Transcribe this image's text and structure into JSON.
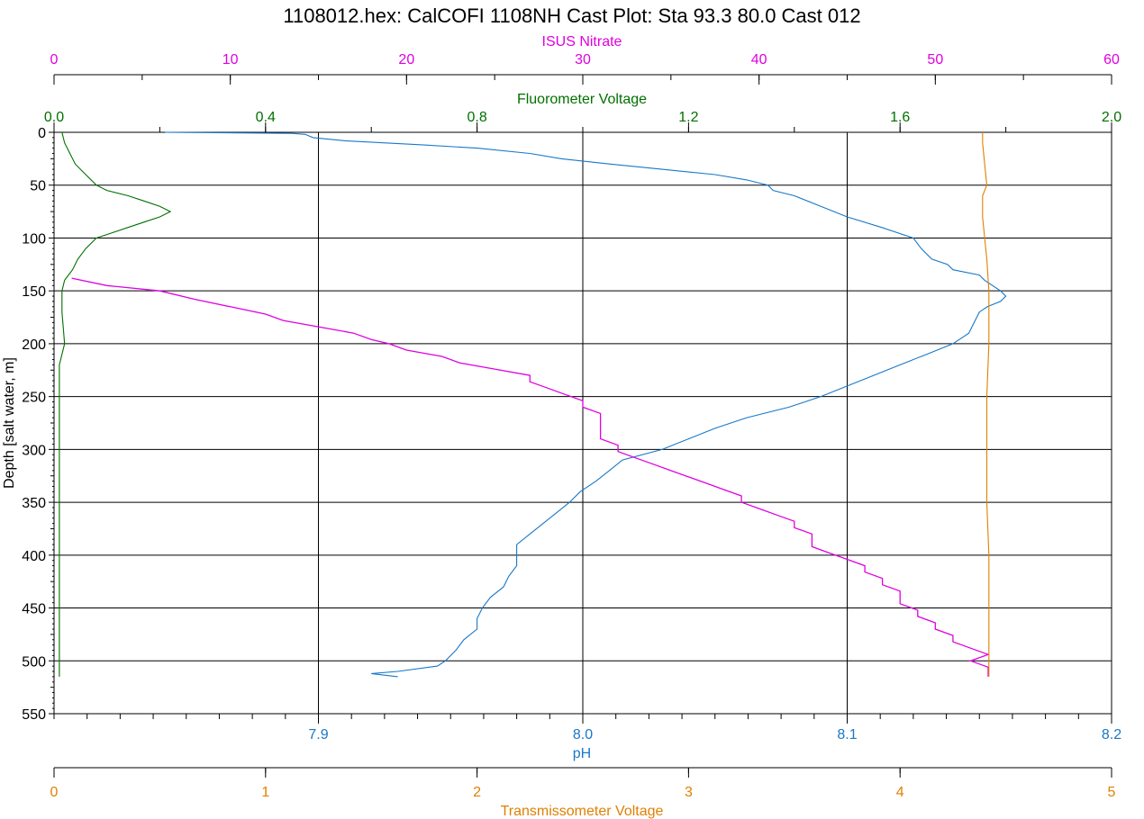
{
  "chart_data": {
    "type": "line",
    "title": "1108012.hex: CalCOFI 1108NH Cast Plot: Sta 93.3 80.0 Cast 012",
    "ylabel": "Depth [salt water, m]",
    "ylim": [
      0,
      550
    ],
    "y_ticks": [
      "0",
      "50",
      "100",
      "150",
      "200",
      "250",
      "300",
      "350",
      "400",
      "450",
      "500",
      "550"
    ],
    "y_reversed": true,
    "grid": true,
    "axes": {
      "nitrate": {
        "label": "ISUS Nitrate",
        "range": [
          0,
          60
        ],
        "ticks": [
          "0",
          "10",
          "20",
          "30",
          "40",
          "50",
          "60"
        ],
        "color": "#e000e0",
        "position": "top"
      },
      "fluor": {
        "label": "Fluorometer Voltage",
        "range": [
          0.0,
          2.0
        ],
        "ticks": [
          "0.0",
          "0.4",
          "0.8",
          "1.2",
          "1.6",
          "2.0"
        ],
        "color": "#007000",
        "position": "top"
      },
      "ph": {
        "label": "pH",
        "range": [
          7.8,
          8.2
        ],
        "ticks": [
          "7.9",
          "8.0",
          "8.1",
          "8.2"
        ],
        "color": "#1878c8",
        "position": "bottom"
      },
      "trans": {
        "label": "Transmissometer Voltage",
        "range": [
          0,
          5
        ],
        "ticks": [
          "0",
          "1",
          "2",
          "3",
          "4",
          "5"
        ],
        "color": "#e08000",
        "position": "bottom"
      }
    },
    "series": [
      {
        "name": "pH",
        "axis": "ph",
        "color": "#1878c8",
        "points": [
          [
            7.842,
            0
          ],
          [
            7.89,
            1
          ],
          [
            7.895,
            2
          ],
          [
            7.898,
            5
          ],
          [
            7.91,
            8
          ],
          [
            7.94,
            12
          ],
          [
            7.96,
            15
          ],
          [
            7.98,
            20
          ],
          [
            7.992,
            25
          ],
          [
            8.01,
            30
          ],
          [
            8.03,
            35
          ],
          [
            8.05,
            40
          ],
          [
            8.062,
            45
          ],
          [
            8.07,
            50
          ],
          [
            8.072,
            55
          ],
          [
            8.08,
            60
          ],
          [
            8.09,
            70
          ],
          [
            8.1,
            80
          ],
          [
            8.113,
            90
          ],
          [
            8.125,
            100
          ],
          [
            8.128,
            110
          ],
          [
            8.13,
            115
          ],
          [
            8.132,
            120
          ],
          [
            8.138,
            125
          ],
          [
            8.14,
            130
          ],
          [
            8.15,
            135
          ],
          [
            8.152,
            140
          ],
          [
            8.158,
            150
          ],
          [
            8.16,
            155
          ],
          [
            8.158,
            160
          ],
          [
            8.153,
            165
          ],
          [
            8.15,
            170
          ],
          [
            8.148,
            180
          ],
          [
            8.146,
            190
          ],
          [
            8.14,
            200
          ],
          [
            8.13,
            210
          ],
          [
            8.12,
            220
          ],
          [
            8.11,
            230
          ],
          [
            8.1,
            240
          ],
          [
            8.09,
            250
          ],
          [
            8.078,
            260
          ],
          [
            8.062,
            270
          ],
          [
            8.05,
            280
          ],
          [
            8.04,
            290
          ],
          [
            8.03,
            300
          ],
          [
            8.015,
            310
          ],
          [
            8.01,
            320
          ],
          [
            8.005,
            330
          ],
          [
            7.999,
            340
          ],
          [
            7.995,
            350
          ],
          [
            7.99,
            360
          ],
          [
            7.985,
            370
          ],
          [
            7.98,
            380
          ],
          [
            7.975,
            390
          ],
          [
            7.975,
            400
          ],
          [
            7.975,
            410
          ],
          [
            7.972,
            420
          ],
          [
            7.97,
            430
          ],
          [
            7.965,
            440
          ],
          [
            7.962,
            450
          ],
          [
            7.96,
            460
          ],
          [
            7.96,
            470
          ],
          [
            7.955,
            480
          ],
          [
            7.952,
            490
          ],
          [
            7.95,
            495
          ],
          [
            7.948,
            500
          ],
          [
            7.945,
            505
          ],
          [
            7.93,
            510
          ],
          [
            7.92,
            512
          ],
          [
            7.93,
            515
          ]
        ]
      },
      {
        "name": "ISUS Nitrate",
        "axis": "nitrate",
        "color": "#e000e0",
        "points": [
          [
            1,
            138
          ],
          [
            3,
            145
          ],
          [
            6,
            150
          ],
          [
            8,
            158
          ],
          [
            10,
            165
          ],
          [
            12,
            172
          ],
          [
            13,
            178
          ],
          [
            15,
            184
          ],
          [
            17,
            190
          ],
          [
            18,
            196
          ],
          [
            19,
            200
          ],
          [
            20,
            206
          ],
          [
            22,
            212
          ],
          [
            23,
            218
          ],
          [
            25,
            224
          ],
          [
            27,
            230
          ],
          [
            27,
            236
          ],
          [
            28,
            242
          ],
          [
            29,
            248
          ],
          [
            30,
            254
          ],
          [
            30,
            260
          ],
          [
            31,
            266
          ],
          [
            31,
            272
          ],
          [
            31,
            278
          ],
          [
            31,
            284
          ],
          [
            31,
            290
          ],
          [
            32,
            296
          ],
          [
            32,
            302
          ],
          [
            33,
            308
          ],
          [
            34,
            314
          ],
          [
            35,
            320
          ],
          [
            36,
            326
          ],
          [
            37,
            332
          ],
          [
            38,
            338
          ],
          [
            39,
            344
          ],
          [
            39,
            350
          ],
          [
            40,
            356
          ],
          [
            41,
            362
          ],
          [
            42,
            368
          ],
          [
            42,
            374
          ],
          [
            43,
            380
          ],
          [
            43,
            386
          ],
          [
            43,
            392
          ],
          [
            44,
            398
          ],
          [
            45,
            404
          ],
          [
            46,
            410
          ],
          [
            46,
            416
          ],
          [
            47,
            422
          ],
          [
            47,
            428
          ],
          [
            48,
            434
          ],
          [
            48,
            440
          ],
          [
            48,
            446
          ],
          [
            49,
            452
          ],
          [
            49,
            458
          ],
          [
            50,
            464
          ],
          [
            50,
            470
          ],
          [
            51,
            476
          ],
          [
            51,
            482
          ],
          [
            52,
            488
          ],
          [
            53,
            494
          ],
          [
            52,
            500
          ],
          [
            53,
            506
          ],
          [
            53,
            512
          ],
          [
            53,
            515
          ]
        ]
      },
      {
        "name": "Fluorometer Voltage",
        "axis": "fluor",
        "color": "#007000",
        "points": [
          [
            0.015,
            0
          ],
          [
            0.02,
            10
          ],
          [
            0.03,
            20
          ],
          [
            0.04,
            30
          ],
          [
            0.06,
            40
          ],
          [
            0.08,
            50
          ],
          [
            0.1,
            55
          ],
          [
            0.14,
            60
          ],
          [
            0.17,
            65
          ],
          [
            0.2,
            70
          ],
          [
            0.22,
            75
          ],
          [
            0.2,
            80
          ],
          [
            0.17,
            85
          ],
          [
            0.14,
            90
          ],
          [
            0.11,
            95
          ],
          [
            0.08,
            100
          ],
          [
            0.06,
            110
          ],
          [
            0.045,
            120
          ],
          [
            0.035,
            130
          ],
          [
            0.02,
            140
          ],
          [
            0.015,
            150
          ],
          [
            0.015,
            170
          ],
          [
            0.02,
            200
          ],
          [
            0.01,
            220
          ],
          [
            0.01,
            300
          ],
          [
            0.01,
            400
          ],
          [
            0.01,
            500
          ],
          [
            0.01,
            515
          ]
        ]
      },
      {
        "name": "Transmissometer Voltage",
        "axis": "trans",
        "color": "#e08000",
        "points": [
          [
            4.39,
            0
          ],
          [
            4.39,
            10
          ],
          [
            4.4,
            30
          ],
          [
            4.41,
            50
          ],
          [
            4.39,
            60
          ],
          [
            4.39,
            80
          ],
          [
            4.4,
            100
          ],
          [
            4.41,
            120
          ],
          [
            4.42,
            150
          ],
          [
            4.42,
            200
          ],
          [
            4.41,
            250
          ],
          [
            4.41,
            300
          ],
          [
            4.41,
            350
          ],
          [
            4.42,
            400
          ],
          [
            4.42,
            450
          ],
          [
            4.42,
            500
          ],
          [
            4.42,
            515
          ]
        ]
      }
    ]
  }
}
